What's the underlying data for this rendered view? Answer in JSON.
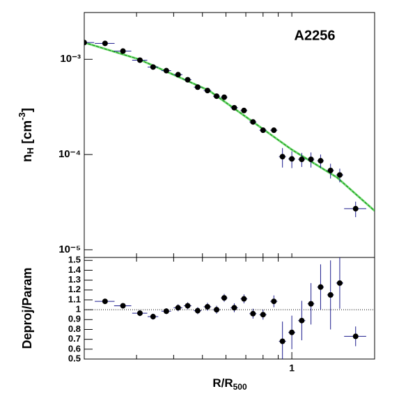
{
  "chart_data": [
    {
      "type": "scatter",
      "title": "A2256",
      "ylabel": [
        "n",
        "H",
        " [cm",
        "-3",
        "]"
      ],
      "log_x": true,
      "log_y": true,
      "xlim": [
        0.2,
        1.9
      ],
      "ylim": [
        8.3e-06,
        0.0031
      ],
      "xminor": [
        0.3,
        0.4,
        0.5,
        0.6,
        0.7,
        0.8,
        0.9,
        1
      ],
      "yticks": [
        {
          "value": 0.001,
          "label": "10⁻³"
        },
        {
          "value": 0.0001,
          "label": "10⁻⁴"
        },
        {
          "value": 1e-05,
          "label": "10⁻⁵"
        }
      ],
      "color": "#000000",
      "errcolor": "#1a1a8c",
      "x": [
        0.2,
        0.235,
        0.27,
        0.308,
        0.341,
        0.378,
        0.414,
        0.446,
        0.482,
        0.52,
        0.558,
        0.592,
        0.64,
        0.69,
        0.74,
        0.8,
        0.87,
        0.93,
        1.0,
        1.08,
        1.16,
        1.25,
        1.35,
        1.45,
        1.64
      ],
      "xerr": [
        0.016,
        0.018,
        0.018,
        0.018,
        0.014,
        0.014,
        0.014,
        0.013,
        0.014,
        0.015,
        0.015,
        0.015,
        0.018,
        0.018,
        0.02,
        0.022,
        0.024,
        0.025,
        0.027,
        0.03,
        0.03,
        0.032,
        0.035,
        0.04,
        0.14
      ],
      "values": [
        0.0015,
        0.00147,
        0.00122,
        0.00098,
        0.00083,
        0.00076,
        0.00069,
        0.00061,
        0.00051,
        0.00047,
        0.00041,
        0.0004,
        0.00031,
        0.00029,
        0.00022,
        0.00018,
        0.00018,
        9.5e-05,
        9e-05,
        8.9e-05,
        8.9e-05,
        8.6e-05,
        6.8e-05,
        6.1e-05,
        2.7e-05
      ],
      "yerr": [
        5e-05,
        5e-05,
        4e-05,
        3e-05,
        3e-05,
        3e-05,
        2e-05,
        2e-05,
        2e-05,
        2e-05,
        2e-05,
        2e-05,
        1.5e-05,
        1.5e-05,
        1e-05,
        1e-05,
        1e-05,
        2.2e-05,
        1.8e-05,
        1.5e-05,
        1.6e-05,
        1.4e-05,
        1.2e-05,
        1e-05,
        5e-06
      ],
      "model": {
        "color": "#33cc33",
        "x": [
          0.2,
          0.306,
          0.526,
          0.8,
          1.0,
          1.42,
          1.9
        ],
        "values": [
          0.0015,
          0.001,
          0.00047,
          0.000185,
          0.0001125,
          5.74e-05,
          2.56e-05
        ]
      }
    },
    {
      "type": "scatter",
      "ylabel": "Deproj/Param",
      "xlabel": [
        "R/R",
        "500"
      ],
      "log_x": true,
      "xlim": [
        0.2,
        1.9
      ],
      "ylim": [
        0.5,
        1.53
      ],
      "xticks": [
        1
      ],
      "xminor": [
        0.3,
        0.4,
        0.5,
        0.6,
        0.7,
        0.8,
        0.9
      ],
      "yticks": [
        0.5,
        0.6,
        0.7,
        0.8,
        0.9,
        1,
        1.1,
        1.2,
        1.3,
        1.4,
        1.5
      ],
      "reference": 1,
      "color": "#000000",
      "errcolor": "#1a1a8c",
      "x": [
        0.235,
        0.27,
        0.308,
        0.341,
        0.378,
        0.414,
        0.446,
        0.482,
        0.52,
        0.558,
        0.592,
        0.64,
        0.69,
        0.74,
        0.8,
        0.87,
        0.93,
        1.0,
        1.08,
        1.16,
        1.25,
        1.35,
        1.45,
        1.64
      ],
      "xerr": [
        0.018,
        0.018,
        0.018,
        0.014,
        0.014,
        0.014,
        0.013,
        0.014,
        0.015,
        0.015,
        0.015,
        0.018,
        0.018,
        0.02,
        0.022,
        0.024,
        0.025,
        0.027,
        0.03,
        0.03,
        0.032,
        0.035,
        0.04,
        0.14
      ],
      "values": [
        1.085,
        1.04,
        0.965,
        0.93,
        0.985,
        1.02,
        1.04,
        0.99,
        1.03,
        1.0,
        1.12,
        1.02,
        1.11,
        0.96,
        0.95,
        1.085,
        0.68,
        0.77,
        0.89,
        1.06,
        1.23,
        1.15,
        1.27,
        0.73
      ],
      "yerr": [
        0.02,
        0.025,
        0.03,
        0.03,
        0.03,
        0.035,
        0.035,
        0.035,
        0.04,
        0.04,
        0.04,
        0.045,
        0.045,
        0.05,
        0.05,
        0.06,
        0.2,
        0.17,
        0.2,
        0.21,
        0.23,
        0.35,
        0.26,
        0.1
      ]
    }
  ]
}
